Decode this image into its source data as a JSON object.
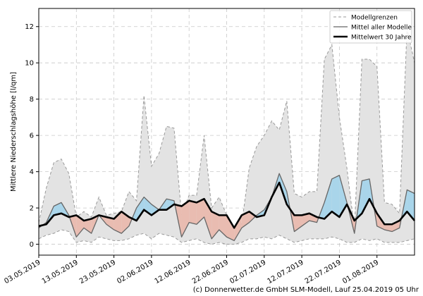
{
  "chart_data": {
    "type": "forecast-band",
    "ylabel": "Mittlere Niederschlagshöhe [l/qm]",
    "credit": "(c) Donnerwetter.de GmbH SLM-Modell, Lauf 25.04.2019 05 Uhr",
    "x": [
      "2019-05-03",
      "2019-05-05",
      "2019-05-07",
      "2019-05-09",
      "2019-05-11",
      "2019-05-13",
      "2019-05-15",
      "2019-05-17",
      "2019-05-19",
      "2019-05-21",
      "2019-05-23",
      "2019-05-25",
      "2019-05-27",
      "2019-05-29",
      "2019-05-31",
      "2019-06-02",
      "2019-06-04",
      "2019-06-06",
      "2019-06-08",
      "2019-06-10",
      "2019-06-12",
      "2019-06-14",
      "2019-06-16",
      "2019-06-18",
      "2019-06-20",
      "2019-06-22",
      "2019-06-24",
      "2019-06-26",
      "2019-06-28",
      "2019-06-30",
      "2019-07-02",
      "2019-07-04",
      "2019-07-06",
      "2019-07-08",
      "2019-07-10",
      "2019-07-12",
      "2019-07-14",
      "2019-07-16",
      "2019-07-18",
      "2019-07-20",
      "2019-07-22",
      "2019-07-24",
      "2019-07-26",
      "2019-07-28",
      "2019-07-30",
      "2019-08-01",
      "2019-08-03",
      "2019-08-05",
      "2019-08-07",
      "2019-08-09",
      "2019-08-11"
    ],
    "xlim": [
      "2019-05-03",
      "2019-08-11"
    ],
    "xticks": [
      {
        "value": "2019-05-03",
        "label": "03.05.2019"
      },
      {
        "value": "2019-05-13",
        "label": "13.05.2019"
      },
      {
        "value": "2019-05-23",
        "label": "23.05.2019"
      },
      {
        "value": "2019-06-02",
        "label": "02.06.2019"
      },
      {
        "value": "2019-06-12",
        "label": "12.06.2019"
      },
      {
        "value": "2019-06-22",
        "label": "22.06.2019"
      },
      {
        "value": "2019-07-02",
        "label": "02.07.2019"
      },
      {
        "value": "2019-07-12",
        "label": "12.07.2019"
      },
      {
        "value": "2019-07-22",
        "label": "22.07.2019"
      },
      {
        "value": "2019-08-01",
        "label": "01.08.2019"
      }
    ],
    "ylim": [
      -0.6,
      13
    ],
    "yticks": [
      0,
      2,
      4,
      6,
      8,
      10,
      12
    ],
    "grid": true,
    "legend": "upper right",
    "band": {
      "name": "Modellgrenzen",
      "color": "#999999",
      "fill": "#e3e3e3",
      "upper": [
        1.2,
        3.1,
        4.5,
        4.7,
        3.9,
        1.5,
        1.8,
        1.5,
        2.6,
        1.6,
        1.7,
        1.8,
        2.9,
        2.4,
        8.2,
        4.3,
        5.0,
        6.5,
        6.4,
        1.6,
        2.7,
        2.7,
        6.0,
        2.0,
        2.6,
        1.6,
        0.9,
        1.1,
        4.2,
        5.4,
        6.0,
        6.8,
        6.3,
        7.9,
        2.8,
        2.6,
        2.9,
        2.9,
        10.2,
        11.0,
        7.0,
        4.2,
        0.8,
        10.2,
        10.2,
        9.8,
        2.3,
        2.2,
        1.7,
        11.9,
        10.0
      ],
      "lower": [
        0.3,
        0.5,
        0.6,
        0.8,
        0.7,
        0.1,
        0.2,
        0.1,
        0.4,
        0.3,
        0.2,
        0.2,
        0.3,
        0.5,
        0.6,
        0.3,
        0.6,
        0.5,
        0.4,
        0.1,
        0.2,
        0.3,
        0.1,
        0.0,
        0.1,
        0.0,
        0.0,
        0.1,
        0.3,
        0.3,
        0.4,
        0.3,
        0.5,
        0.3,
        0.1,
        0.2,
        0.3,
        0.3,
        0.3,
        0.4,
        0.3,
        0.1,
        0.1,
        0.3,
        0.2,
        0.3,
        0.1,
        0.1,
        0.1,
        0.2,
        0.3
      ]
    },
    "fill_colors": {
      "above": "#a9d5ea",
      "below": "#e9bcb1"
    },
    "series": [
      {
        "name": "Mittel aller Modelle",
        "color": "#666666",
        "width": 1.3,
        "values": [
          0.9,
          1.2,
          2.1,
          2.3,
          1.6,
          0.4,
          0.9,
          0.6,
          1.6,
          1.1,
          0.8,
          0.6,
          1.0,
          2.0,
          2.6,
          2.2,
          1.9,
          2.5,
          2.4,
          0.4,
          1.2,
          1.1,
          1.5,
          0.3,
          0.8,
          0.4,
          0.2,
          0.9,
          1.2,
          1.6,
          1.9,
          2.6,
          3.9,
          2.9,
          0.7,
          1.0,
          1.3,
          1.2,
          2.3,
          3.6,
          3.8,
          2.3,
          0.6,
          3.5,
          3.6,
          1.0,
          0.8,
          0.7,
          0.9,
          3.0,
          2.8
        ]
      },
      {
        "name": "Mittelwert 30 Jahre",
        "color": "#000000",
        "width": 2.6,
        "values": [
          1.0,
          1.1,
          1.6,
          1.7,
          1.5,
          1.6,
          1.3,
          1.4,
          1.6,
          1.5,
          1.4,
          1.8,
          1.5,
          1.3,
          1.9,
          1.6,
          1.9,
          1.9,
          2.2,
          2.1,
          2.4,
          2.3,
          2.5,
          1.8,
          1.6,
          1.6,
          0.9,
          1.6,
          1.8,
          1.5,
          1.6,
          2.6,
          3.4,
          2.2,
          1.6,
          1.6,
          1.7,
          1.5,
          1.4,
          1.8,
          1.5,
          2.2,
          1.3,
          1.7,
          2.5,
          1.7,
          1.1,
          1.1,
          1.3,
          1.8,
          1.3
        ]
      }
    ]
  }
}
